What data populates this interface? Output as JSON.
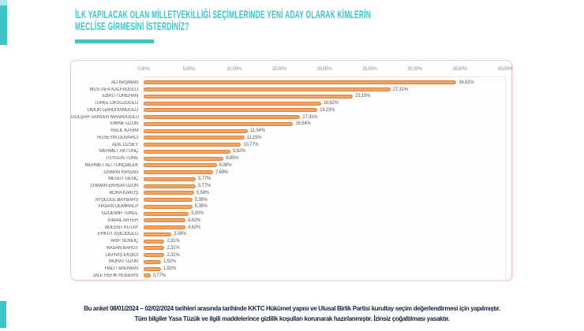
{
  "header": {
    "title_line1": "İLK YAPILACAK OLAN MİLLETVEKİLLİĞİ SEÇİMLERİNDE YENİ ADAY OLARAK KİMLERİN",
    "title_line2": "MECLİSE GİRMESİNİ İSTERDİNİZ?"
  },
  "footer": {
    "line1": "Bu anket 08/01/2024 – 02/02/2024 tarihleri arasında tarihinde KKTC Hükümet yapısı ve Ulusal Birlik Partisi kurultay seçim değerlendirmesi için yapılmıştır.",
    "line2": "Tüm bilgiler Yasa Tüzük ve ilgili maddelerince gizlilik koşulları korunarak hazırlanmıştır.  İzinsiz çoğaltılması yasaktır."
  },
  "colors": {
    "accent_teal": "#3EC3C8",
    "bar_fill": "#F3A364",
    "bar_border": "#DC8335",
    "panel_border": "#EDC7C3",
    "axis_text": "#8E8E8E",
    "label_text": "#595959",
    "footer_text": "#16213C"
  },
  "chart_data": {
    "type": "bar",
    "orientation": "horizontal",
    "title": "İLK YAPILACAK OLAN MİLLETVEKİLLİĞİ SEÇİMLERİNDE YENİ ADAY OLARAK KİMLERİN MECLİSE GİRMESİNİ İSTERDİNİZ?",
    "categories": [
      "ALİ BAŞMAN",
      "MUSTAFA KALFAOĞLU",
      "EBRU TÖREHAN",
      "TÜREL ÖKSÜZOĞLU",
      "ÖMÜR GARDİYANOĞLU",
      "GÜLŞAH SANVER MANAVOĞLU",
      "EMİNE UZUN",
      "HALİL KASIM",
      "HÜSEYİN DUVARCI",
      "ADİL ÖZSEY",
      "MEHMET AKTUNÇ",
      "TUYGUN TÖRE",
      "MEHMET ALİ TUNÇBİLEK",
      "OSMAN KIRŞAN",
      "MESUT GENÇ",
      "OSMAN EKREM UZUN",
      "BORA KAKUŞ",
      "AYŞEGÜL BAYBARS",
      "HASAN DEMİRALP",
      "ÖZDEMİR TOKEL",
      "İSMAİL ARTER",
      "BÜLENT KUTAY",
      "ERKUT AŞICIOĞLU",
      "ARİF SONUÇ",
      "HASAN BARUT",
      "DERVİŞ EKŞİCİ",
      "MURAT UZUN",
      "HALİT BAĞMAN",
      "JALE REFİK ROGERS"
    ],
    "values": [
      34.62,
      27.31,
      23.15,
      19.62,
      19.23,
      17.31,
      16.54,
      11.54,
      11.15,
      10.77,
      9.62,
      8.85,
      8.08,
      7.69,
      5.77,
      5.77,
      5.58,
      5.38,
      5.38,
      5.0,
      4.62,
      4.62,
      3.08,
      2.31,
      2.31,
      2.31,
      1.92,
      1.92,
      0.77
    ],
    "value_labels": [
      "34,62%",
      "27,31%",
      "23,15%",
      "19,62%",
      "19,23%",
      "17,31%",
      "16,54%",
      "11,54%",
      "11,15%",
      "10,77%",
      "9,62%",
      "8,85%",
      "8,08%",
      "7,69%",
      "5,77%",
      "5,77%",
      "5,58%",
      "5,38%",
      "5,38%",
      "5,00%",
      "4,62%",
      "4,62%",
      "3,08%",
      "2,31%",
      "2,31%",
      "2,31%",
      "1,92%",
      "1,92%",
      "0,77%"
    ],
    "xlabel": "",
    "ylabel": "",
    "xlim": [
      0,
      40
    ],
    "x_ticks": [
      "0,00%",
      "5,00%",
      "10,00%",
      "15,00%",
      "20,00%",
      "25,00%",
      "30,00%",
      "35,00%",
      "40,00%"
    ],
    "tick_position": "top",
    "grid": false,
    "legend": false,
    "bar_color": "#F3A364"
  }
}
